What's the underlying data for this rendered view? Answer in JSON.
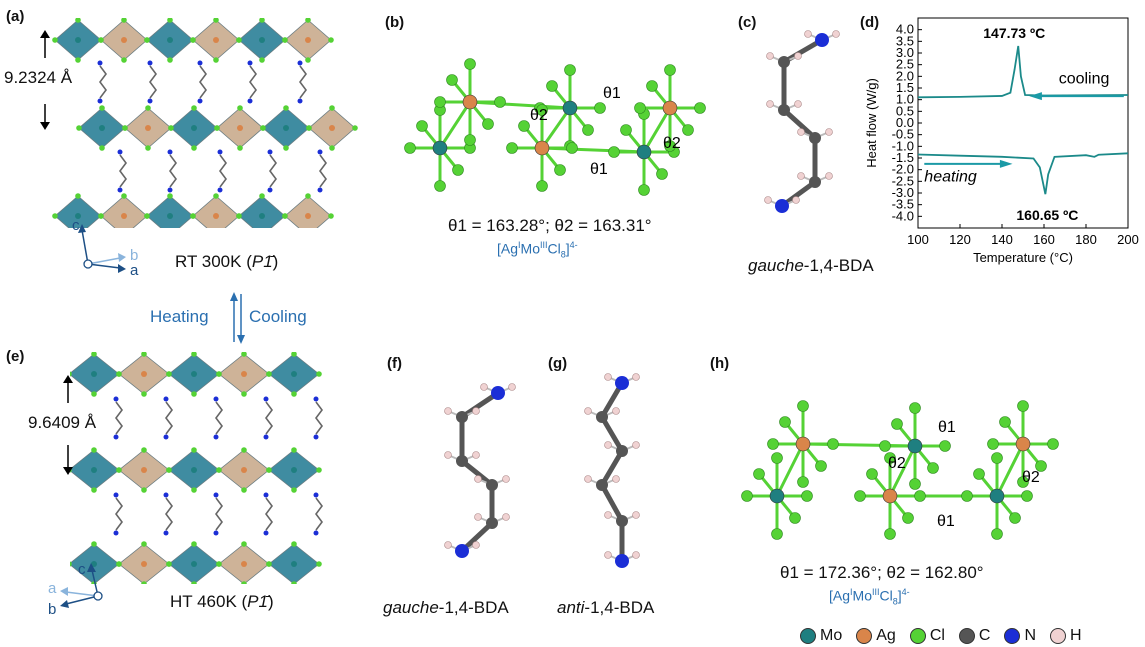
{
  "panels": {
    "a": {
      "label": "(a)",
      "spacing": "9.2324 Å",
      "phase_prefix": "RT 300K (",
      "phase_group": "P1̄",
      "phase_suffix": ")",
      "axes": [
        "c",
        "b",
        "a"
      ]
    },
    "transition": {
      "heating": "Heating",
      "cooling": "Cooling"
    },
    "b": {
      "label": "(b)",
      "angles": "θ1 = 163.28°; θ2 = 163.31°",
      "formula": "[AgIMoIIICl8]4-",
      "angle_labels": [
        "θ1",
        "θ2",
        "θ1",
        "θ2"
      ]
    },
    "c": {
      "label": "(c)",
      "caption_italic": "gauche",
      "caption_rest": "-1,4-BDA"
    },
    "d": {
      "label": "(d)"
    },
    "e": {
      "label": "(e)",
      "spacing": "9.6409 Å",
      "phase_prefix": "HT 460K (",
      "phase_group": "P1̄",
      "phase_suffix": ")",
      "axes": [
        "c",
        "a",
        "b"
      ]
    },
    "f": {
      "label": "(f)",
      "caption_italic": "gauche",
      "caption_rest": "-1,4-BDA"
    },
    "g": {
      "label": "(g)",
      "caption_italic": "anti",
      "caption_rest": "-1,4-BDA"
    },
    "h": {
      "label": "(h)",
      "angles": "θ1 = 172.36°; θ2 = 162.80°",
      "formula": "[AgIMoIIICl8]4-",
      "angle_labels": [
        "θ1",
        "θ2",
        "θ1",
        "θ2"
      ]
    }
  },
  "legend": [
    {
      "symbol": "Mo",
      "color": "#1f7f80"
    },
    {
      "symbol": "Ag",
      "color": "#d9854a"
    },
    {
      "symbol": "Cl",
      "color": "#55d235"
    },
    {
      "symbol": "C",
      "color": "#555555"
    },
    {
      "symbol": "N",
      "color": "#1b2ed6"
    },
    {
      "symbol": "H",
      "color": "#f0d2d2"
    }
  ],
  "colors": {
    "octa_mo": "#2b8097",
    "octa_ag": "#c9ab8d",
    "curve": "#1b8a8a",
    "arrow": "#1b9aa6"
  },
  "chart_data": {
    "type": "line",
    "xlabel": "Temperature (°C)",
    "ylabel": "Heat flow (W/g)",
    "xlim": [
      100,
      200
    ],
    "ylim": [
      -4.5,
      4.5
    ],
    "xticks": [
      "100",
      "120",
      "140",
      "160",
      "180",
      "200"
    ],
    "yticks": [
      "4.0",
      "3.5",
      "3.0",
      "2.5",
      "2.0",
      "1.5",
      "1.0",
      "0.5",
      "0.0",
      "-0.5",
      "-1.0",
      "-1.5",
      "-2.0",
      "-2.5",
      "-3.0",
      "-3.5",
      "-4.0"
    ],
    "series": [
      {
        "name": "cooling",
        "x": [
          100,
          120,
          140,
          144,
          146,
          147.73,
          149,
          151,
          160,
          180,
          200
        ],
        "y": [
          1.1,
          1.12,
          1.16,
          1.3,
          2.3,
          3.3,
          2.0,
          1.2,
          1.18,
          1.19,
          1.2
        ]
      },
      {
        "name": "heating",
        "x": [
          100,
          120,
          140,
          155,
          158,
          160.65,
          162,
          165,
          180,
          184,
          186,
          200
        ],
        "y": [
          -1.35,
          -1.4,
          -1.45,
          -1.52,
          -1.9,
          -3.05,
          -2.2,
          -1.45,
          -1.38,
          -1.45,
          -1.36,
          -1.3
        ]
      }
    ],
    "annotations": [
      {
        "text": "147.73 ºC",
        "x": 147.73,
        "y": 3.3
      },
      {
        "text": "160.65 ºC",
        "x": 160.65,
        "y": -3.05
      },
      {
        "text": "cooling"
      },
      {
        "text": "heating"
      }
    ]
  }
}
